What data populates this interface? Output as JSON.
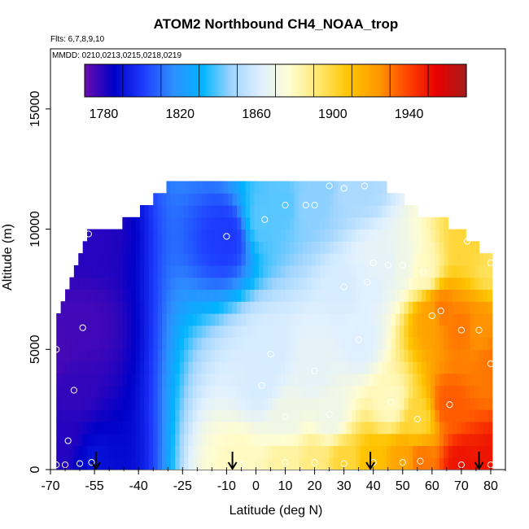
{
  "chart_data": {
    "type": "heatmap",
    "title": "ATOM2 Northbound CH4_NOAA_trop",
    "subtitle_flights": "Flts: 6,7,8,9,10",
    "subtitle_dates": "MMDD: 0210,0213,0215,0218,0219",
    "xlabel": "Latitude (deg N)",
    "ylabel": "Altitude (m)",
    "xlim": [
      -70,
      85
    ],
    "ylim": [
      0,
      17500
    ],
    "x_ticks": [
      -70,
      -55,
      -40,
      -25,
      -10,
      0,
      10,
      20,
      30,
      40,
      50,
      60,
      70,
      80
    ],
    "y_ticks": [
      0,
      5000,
      10000,
      15000
    ],
    "colorbar": {
      "min": 1770,
      "max": 1970,
      "ticks": [
        1780,
        1820,
        1860,
        1900,
        1940
      ],
      "colors": [
        "#6a0dad",
        "#0000c8",
        "#1e3cff",
        "#2f8fff",
        "#00b4ff",
        "#9fd4ff",
        "#e0f0ff",
        "#fffdd0",
        "#ffe66b",
        "#ffc400",
        "#ff9900",
        "#ff4400",
        "#e60000",
        "#a61c1c"
      ]
    },
    "profile_marks": [
      -54.5,
      -8,
      39,
      76
    ],
    "altitude_top_profile": [
      {
        "lat": -68,
        "alt": 6000
      },
      {
        "lat": -65,
        "alt": 6800
      },
      {
        "lat": -62,
        "alt": 7800
      },
      {
        "lat": -60,
        "alt": 8800
      },
      {
        "lat": -57,
        "alt": 9700
      },
      {
        "lat": -55,
        "alt": 10000
      },
      {
        "lat": -45,
        "alt": 10000
      },
      {
        "lat": -40,
        "alt": 10500
      },
      {
        "lat": -35,
        "alt": 11000
      },
      {
        "lat": -30,
        "alt": 11500
      },
      {
        "lat": -20,
        "alt": 12000
      },
      {
        "lat": 40,
        "alt": 12000
      },
      {
        "lat": 45,
        "alt": 11500
      },
      {
        "lat": 50,
        "alt": 11000
      },
      {
        "lat": 55,
        "alt": 10500
      },
      {
        "lat": 65,
        "alt": 10000
      },
      {
        "lat": 72,
        "alt": 9500
      },
      {
        "lat": 80,
        "alt": 8500
      }
    ],
    "observations": [
      {
        "lat": -68,
        "alt": 200,
        "ch4": 1780
      },
      {
        "lat": -65,
        "alt": 200,
        "ch4": 1780
      },
      {
        "lat": -60,
        "alt": 250,
        "ch4": 1785
      },
      {
        "lat": -56,
        "alt": 300,
        "ch4": 1790
      },
      {
        "lat": -68,
        "alt": 5000,
        "ch4": 1775
      },
      {
        "lat": -62,
        "alt": 3300,
        "ch4": 1778
      },
      {
        "lat": -64,
        "alt": 1200,
        "ch4": 1780
      },
      {
        "lat": -59,
        "alt": 5900,
        "ch4": 1776
      },
      {
        "lat": -57,
        "alt": 9800,
        "ch4": 1780
      },
      {
        "lat": -10,
        "alt": 9700,
        "ch4": 1800
      },
      {
        "lat": -5,
        "alt": 200,
        "ch4": 1880
      },
      {
        "lat": 2,
        "alt": 3500,
        "ch4": 1860
      },
      {
        "lat": 5,
        "alt": 4800,
        "ch4": 1860
      },
      {
        "lat": 3,
        "alt": 10400,
        "ch4": 1840
      },
      {
        "lat": 10,
        "alt": 11000,
        "ch4": 1840
      },
      {
        "lat": 17,
        "alt": 11000,
        "ch4": 1845
      },
      {
        "lat": 20,
        "alt": 11000,
        "ch4": 1845
      },
      {
        "lat": 25,
        "alt": 11800,
        "ch4": 1845
      },
      {
        "lat": 30,
        "alt": 11700,
        "ch4": 1850
      },
      {
        "lat": 37,
        "alt": 11800,
        "ch4": 1850
      },
      {
        "lat": 10,
        "alt": 2200,
        "ch4": 1870
      },
      {
        "lat": 20,
        "alt": 4100,
        "ch4": 1865
      },
      {
        "lat": 25,
        "alt": 2300,
        "ch4": 1870
      },
      {
        "lat": 30,
        "alt": 7600,
        "ch4": 1860
      },
      {
        "lat": 35,
        "alt": 5400,
        "ch4": 1862
      },
      {
        "lat": 38,
        "alt": 7800,
        "ch4": 1862
      },
      {
        "lat": 40,
        "alt": 8600,
        "ch4": 1865
      },
      {
        "lat": 45,
        "alt": 8500,
        "ch4": 1865
      },
      {
        "lat": 50,
        "alt": 8500,
        "ch4": 1870
      },
      {
        "lat": 46,
        "alt": 2800,
        "ch4": 1880
      },
      {
        "lat": 55,
        "alt": 2100,
        "ch4": 1900
      },
      {
        "lat": 57,
        "alt": 8200,
        "ch4": 1880
      },
      {
        "lat": 60,
        "alt": 6400,
        "ch4": 1920
      },
      {
        "lat": 63,
        "alt": 6600,
        "ch4": 1930
      },
      {
        "lat": 66,
        "alt": 2700,
        "ch4": 1935
      },
      {
        "lat": 70,
        "alt": 5800,
        "ch4": 1930
      },
      {
        "lat": 72,
        "alt": 9500,
        "ch4": 1900
      },
      {
        "lat": 76,
        "alt": 5800,
        "ch4": 1925
      },
      {
        "lat": 78,
        "alt": 9300,
        "ch4": 1900
      },
      {
        "lat": 80,
        "alt": 8600,
        "ch4": 1895
      },
      {
        "lat": 80,
        "alt": 4400,
        "ch4": 1930
      },
      {
        "lat": 80,
        "alt": 200,
        "ch4": 1950
      },
      {
        "lat": 56,
        "alt": 350,
        "ch4": 1930
      },
      {
        "lat": 50,
        "alt": 300,
        "ch4": 1920
      },
      {
        "lat": 40,
        "alt": 300,
        "ch4": 1910
      },
      {
        "lat": 30,
        "alt": 250,
        "ch4": 1900
      },
      {
        "lat": 20,
        "alt": 300,
        "ch4": 1890
      },
      {
        "lat": 10,
        "alt": 300,
        "ch4": 1885
      },
      {
        "lat": 70,
        "alt": 200,
        "ch4": 1950
      }
    ]
  }
}
